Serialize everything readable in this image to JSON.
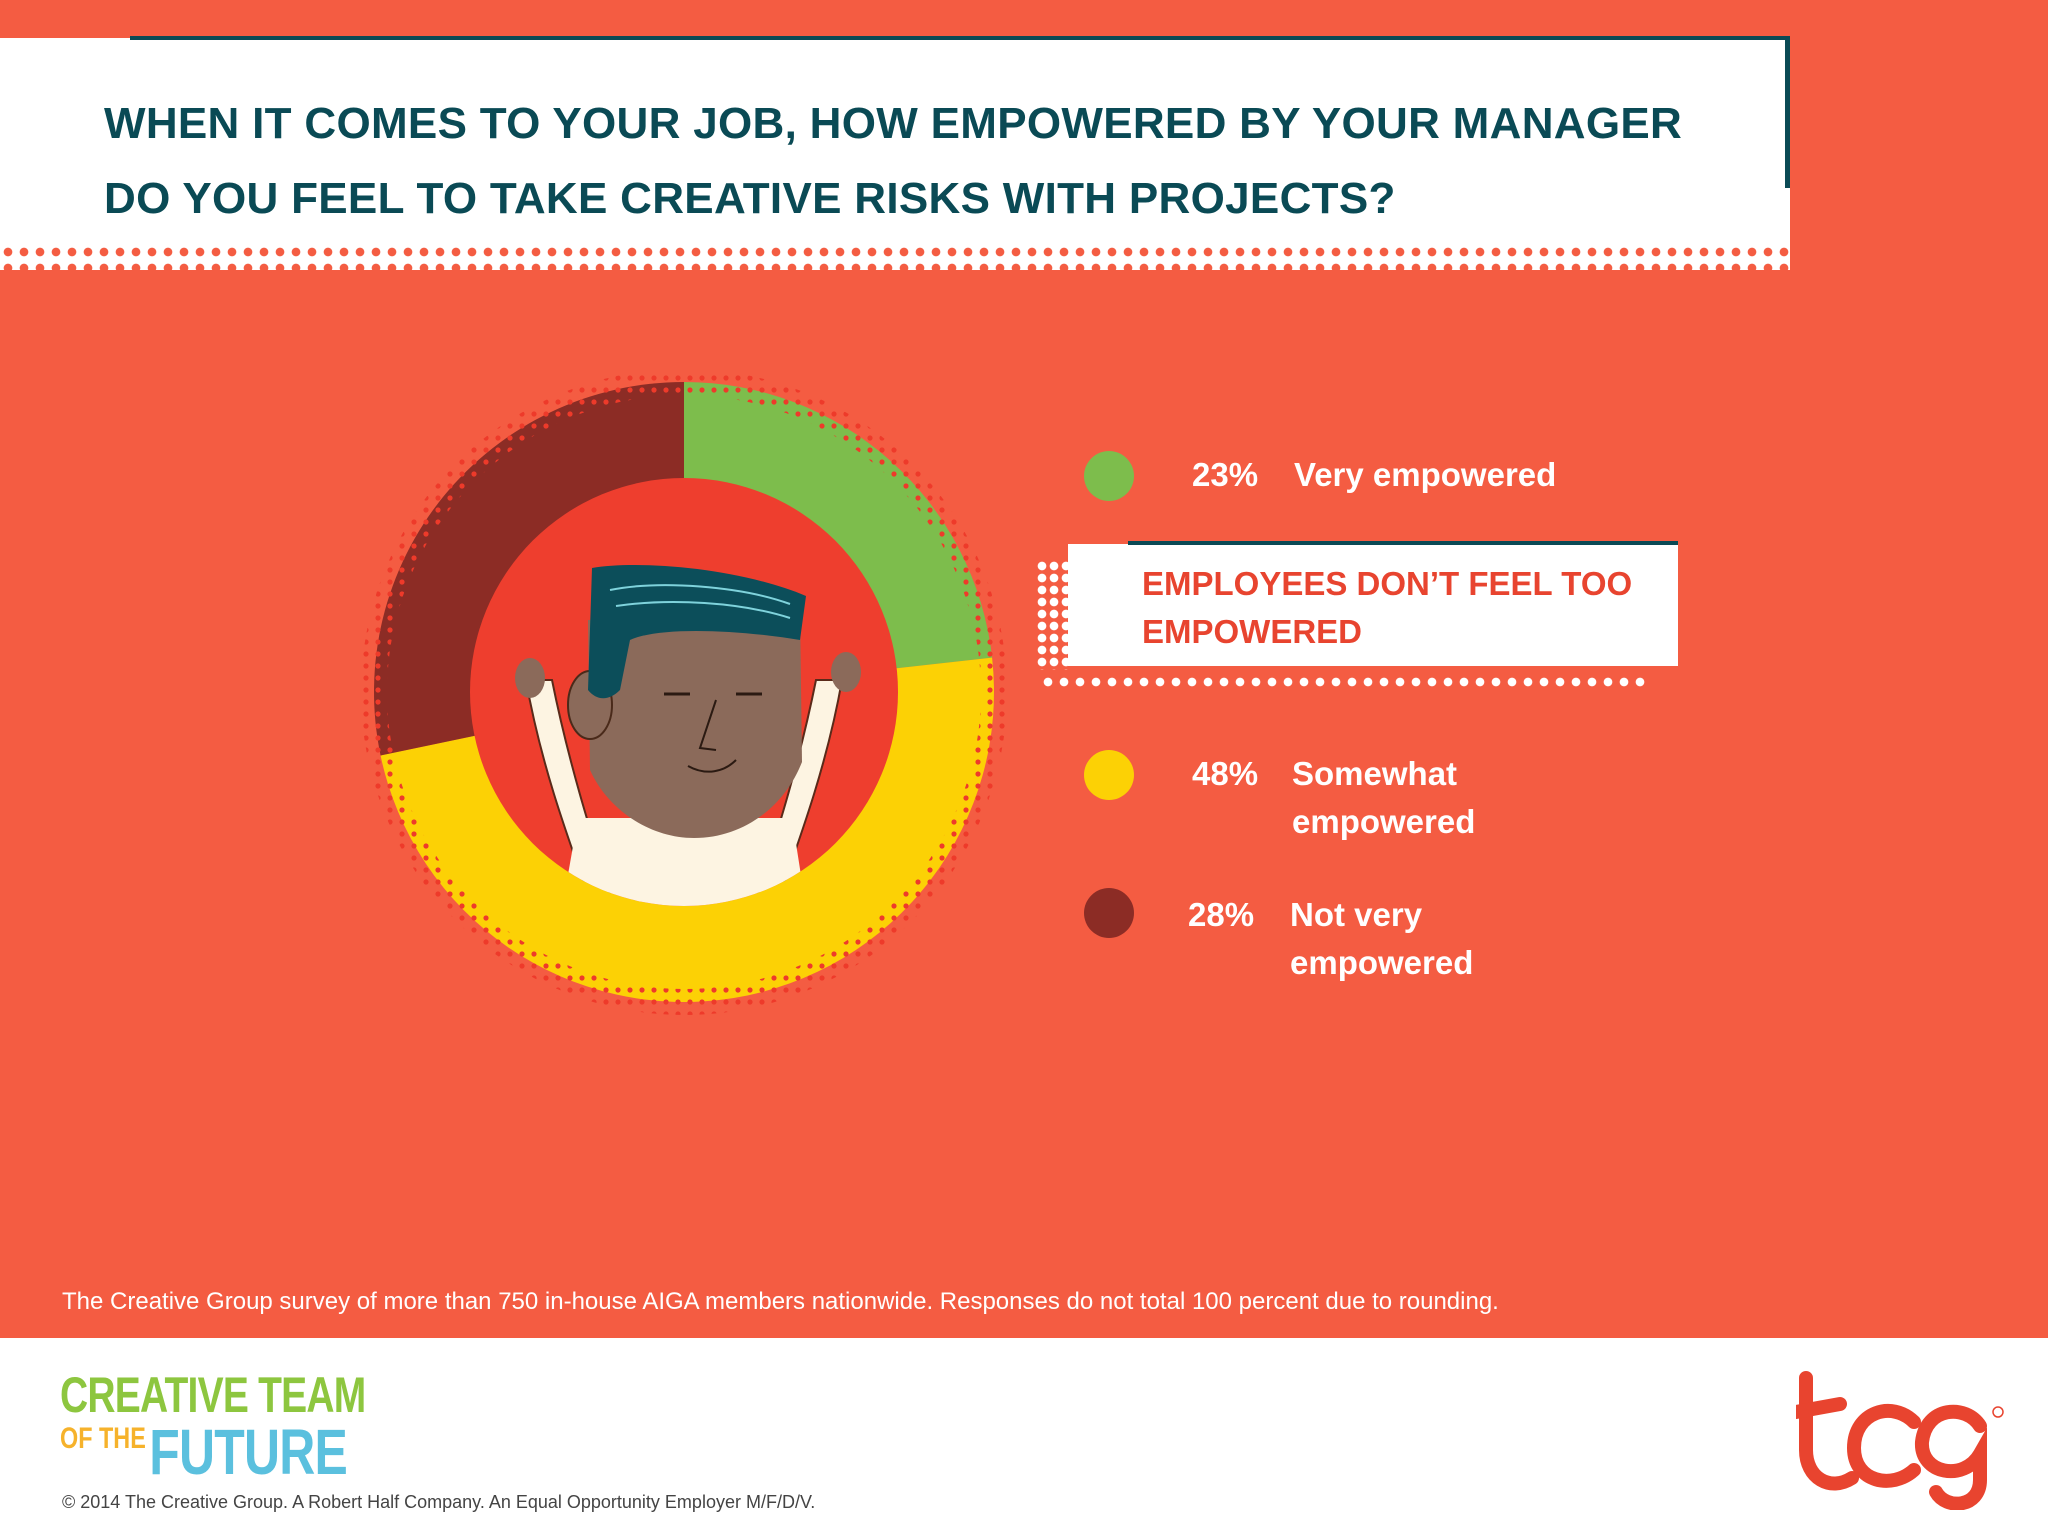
{
  "title": "WHEN IT COMES TO YOUR JOB, HOW EMPOWERED BY YOUR MANAGER DO YOU FEEL TO TAKE CREATIVE RISKS WITH PROJECTS?",
  "chart_data": {
    "type": "pie",
    "title": "WHEN IT COMES TO YOUR JOB, HOW EMPOWERED BY YOUR MANAGER DO YOU FEEL TO TAKE CREATIVE RISKS WITH PROJECTS?",
    "categories": [
      "Very empowered",
      "Somewhat empowered",
      "Not very empowered"
    ],
    "values": [
      23,
      48,
      28
    ],
    "unit": "%",
    "colors": [
      "#7dbd4c",
      "#fcd105",
      "#8c2c25"
    ],
    "legend_position": "right"
  },
  "legend": [
    {
      "pct": "23%",
      "label": "Very empowered",
      "color": "#7dbd4c"
    },
    {
      "pct": "48%",
      "label": "Somewhat empowered",
      "color": "#fcd105"
    },
    {
      "pct": "28%",
      "label": "Not very empowered",
      "color": "#8c2c25"
    }
  ],
  "callout": "EMPLOYEES DON’T FEEL TOO EMPOWERED",
  "survey_note": "The Creative Group survey of more than 750 in-house AIGA members nationwide. Responses do not total 100 percent due to rounding.",
  "logo_left": {
    "line1": "CREATIVE TEAM",
    "ofthe": "OF THE",
    "future": "FUTURE"
  },
  "logo_right": "tcg",
  "copyright": "© 2014 The Creative Group. A Robert Half Company. An Equal Opportunity Employer M/F/D/V.",
  "colors": {
    "background": "#f45c42",
    "title": "#0a4a55",
    "callout_text": "#e8442f"
  }
}
